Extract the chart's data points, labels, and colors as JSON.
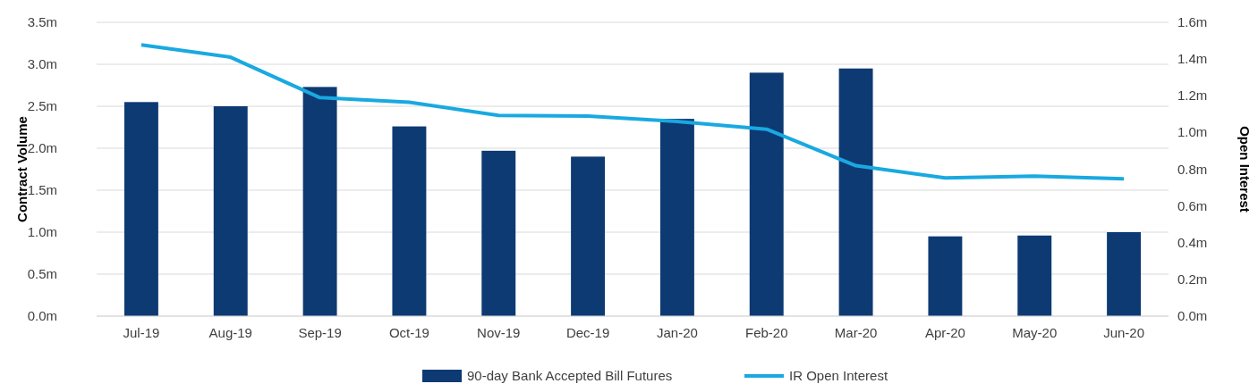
{
  "chart_data": {
    "type": "bar",
    "ylabel": "Contract Volume",
    "y2label": "Open Interest",
    "categories": [
      "Jul-19",
      "Aug-19",
      "Sep-19",
      "Oct-19",
      "Nov-19",
      "Dec-19",
      "Jan-20",
      "Feb-20",
      "Mar-20",
      "Apr-20",
      "May-20",
      "Jun-20"
    ],
    "series": [
      {
        "name": "90-day Bank Accepted Bill Futures",
        "color": "#0d3a73",
        "values": [
          2.55,
          2.5,
          2.73,
          2.26,
          1.97,
          1.9,
          2.35,
          2.9,
          2.95,
          0.95,
          0.96,
          1.0
        ]
      },
      {
        "name": "IR Open Interest",
        "type": "line",
        "axis": "y2",
        "color": "#19a9e0",
        "values": [
          1.477,
          1.41,
          1.19,
          1.165,
          1.093,
          1.089,
          1.06,
          1.018,
          0.819,
          0.753,
          0.762,
          0.748
        ]
      }
    ],
    "ylim": [
      0,
      3.5
    ],
    "yticks": [
      {
        "value": 0,
        "label": "0.0m"
      },
      {
        "value": 0.5,
        "label": "0.5m"
      },
      {
        "value": 1,
        "label": "1.0m"
      },
      {
        "value": 1.5,
        "label": "1.5m"
      },
      {
        "value": 2,
        "label": "2.0m"
      },
      {
        "value": 2.5,
        "label": "2.5m"
      },
      {
        "value": 3,
        "label": "3.0m"
      },
      {
        "value": 3.5,
        "label": "3.5m"
      }
    ],
    "y2lim": [
      0,
      1.6
    ],
    "y2ticks": [
      {
        "value": 0,
        "label": "0.0m"
      },
      {
        "value": 0.2,
        "label": "0.2m"
      },
      {
        "value": 0.4,
        "label": "0.4m"
      },
      {
        "value": 0.6,
        "label": "0.6m"
      },
      {
        "value": 0.8,
        "label": "0.8m"
      },
      {
        "value": 1,
        "label": "1.0m"
      },
      {
        "value": 1.2,
        "label": "1.2m"
      },
      {
        "value": 1.4,
        "label": "1.4m"
      },
      {
        "value": 1.6,
        "label": "1.6m"
      }
    ],
    "grid": "y",
    "legend": "bottom"
  }
}
